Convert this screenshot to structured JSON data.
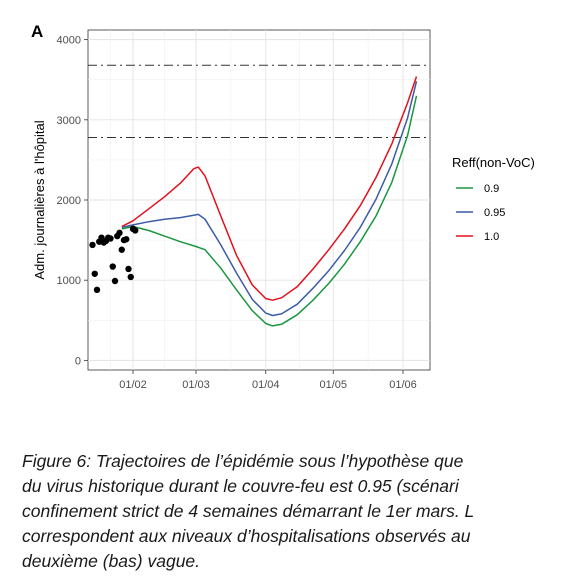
{
  "chart_data": {
    "type": "line",
    "panel_letter": "A",
    "ylabel": "Adm. journalières à l'hôpital",
    "xlabel": "",
    "x_ticks": [
      "01/02",
      "01/03",
      "01/04",
      "01/05",
      "01/06"
    ],
    "y_ticks": [
      0,
      1000,
      2000,
      3000,
      4000
    ],
    "xlim": [
      "2021-01-12",
      "2021-06-13"
    ],
    "ylim": [
      -120,
      4120
    ],
    "grid": true,
    "legend_title": "Reff(non-VoC)",
    "legend_position": "right",
    "reference_lines": [
      2780,
      3680
    ],
    "series": [
      {
        "name": "0.9",
        "color": "#1a9641",
        "points": [
          [
            "2021-01-27",
            1640
          ],
          [
            "2021-02-01",
            1670
          ],
          [
            "2021-02-08",
            1620
          ],
          [
            "2021-02-15",
            1550
          ],
          [
            "2021-02-22",
            1480
          ],
          [
            "2021-03-01",
            1420
          ],
          [
            "2021-03-05",
            1380
          ],
          [
            "2021-03-12",
            1150
          ],
          [
            "2021-03-19",
            880
          ],
          [
            "2021-03-26",
            620
          ],
          [
            "2021-04-01",
            460
          ],
          [
            "2021-04-04",
            430
          ],
          [
            "2021-04-08",
            450
          ],
          [
            "2021-04-15",
            570
          ],
          [
            "2021-04-22",
            750
          ],
          [
            "2021-04-29",
            960
          ],
          [
            "2021-05-06",
            1200
          ],
          [
            "2021-05-13",
            1480
          ],
          [
            "2021-05-20",
            1800
          ],
          [
            "2021-05-27",
            2220
          ],
          [
            "2021-06-03",
            2800
          ],
          [
            "2021-06-07",
            3300
          ]
        ]
      },
      {
        "name": "0.95",
        "color": "#3b5ca8",
        "points": [
          [
            "2021-01-27",
            1660
          ],
          [
            "2021-02-01",
            1690
          ],
          [
            "2021-02-08",
            1730
          ],
          [
            "2021-02-15",
            1760
          ],
          [
            "2021-02-22",
            1780
          ],
          [
            "2021-02-28",
            1810
          ],
          [
            "2021-03-02",
            1820
          ],
          [
            "2021-03-05",
            1760
          ],
          [
            "2021-03-12",
            1440
          ],
          [
            "2021-03-19",
            1090
          ],
          [
            "2021-03-26",
            760
          ],
          [
            "2021-04-01",
            590
          ],
          [
            "2021-04-04",
            560
          ],
          [
            "2021-04-08",
            580
          ],
          [
            "2021-04-15",
            700
          ],
          [
            "2021-04-22",
            900
          ],
          [
            "2021-04-29",
            1120
          ],
          [
            "2021-05-06",
            1370
          ],
          [
            "2021-05-13",
            1660
          ],
          [
            "2021-05-20",
            2010
          ],
          [
            "2021-05-27",
            2450
          ],
          [
            "2021-06-03",
            3020
          ],
          [
            "2021-06-07",
            3480
          ]
        ]
      },
      {
        "name": "1.0",
        "color": "#e3101c",
        "points": [
          [
            "2021-01-27",
            1670
          ],
          [
            "2021-02-01",
            1740
          ],
          [
            "2021-02-08",
            1890
          ],
          [
            "2021-02-15",
            2040
          ],
          [
            "2021-02-22",
            2210
          ],
          [
            "2021-02-28",
            2390
          ],
          [
            "2021-03-02",
            2410
          ],
          [
            "2021-03-05",
            2300
          ],
          [
            "2021-03-12",
            1800
          ],
          [
            "2021-03-19",
            1310
          ],
          [
            "2021-03-26",
            940
          ],
          [
            "2021-04-01",
            770
          ],
          [
            "2021-04-04",
            750
          ],
          [
            "2021-04-08",
            780
          ],
          [
            "2021-04-15",
            920
          ],
          [
            "2021-04-22",
            1140
          ],
          [
            "2021-04-29",
            1380
          ],
          [
            "2021-05-06",
            1640
          ],
          [
            "2021-05-13",
            1930
          ],
          [
            "2021-05-20",
            2280
          ],
          [
            "2021-05-27",
            2700
          ],
          [
            "2021-06-03",
            3210
          ],
          [
            "2021-06-07",
            3540
          ]
        ]
      }
    ],
    "observed": [
      [
        "2021-01-14",
        1440
      ],
      [
        "2021-01-15",
        1080
      ],
      [
        "2021-01-16",
        880
      ],
      [
        "2021-01-17",
        1480
      ],
      [
        "2021-01-18",
        1530
      ],
      [
        "2021-01-19",
        1470
      ],
      [
        "2021-01-20",
        1490
      ],
      [
        "2021-01-21",
        1530
      ],
      [
        "2021-01-22",
        1520
      ],
      [
        "2021-01-23",
        1170
      ],
      [
        "2021-01-24",
        990
      ],
      [
        "2021-01-25",
        1550
      ],
      [
        "2021-01-26",
        1590
      ],
      [
        "2021-01-27",
        1380
      ],
      [
        "2021-01-28",
        1500
      ],
      [
        "2021-01-29",
        1510
      ],
      [
        "2021-01-30",
        1140
      ],
      [
        "2021-01-31",
        1040
      ],
      [
        "2021-02-01",
        1640
      ],
      [
        "2021-02-02",
        1620
      ]
    ]
  },
  "caption": [
    "Figure 6: Trajectoires de l’épidémie sous l’hypothèse que",
    "du virus historique durant le couvre-feu est 0.95 (scénari",
    "confinement strict de 4 semaines démarrant le 1er mars. L",
    "correspondent aux niveaux d’hospitalisations observés au",
    "deuxième (bas) vague."
  ]
}
